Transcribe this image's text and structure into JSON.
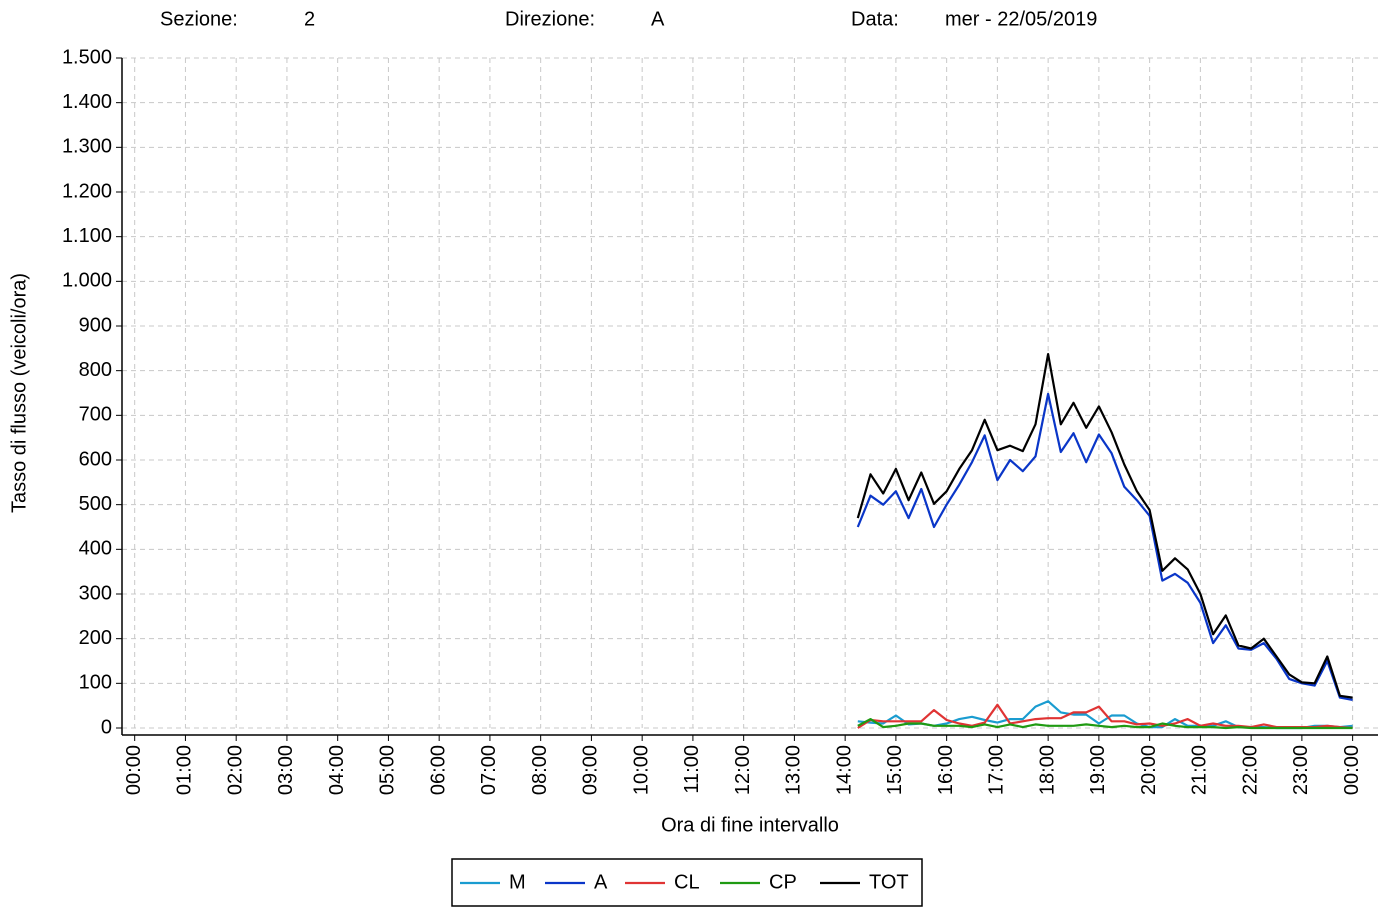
{
  "chart_data": {
    "type": "line",
    "header_fields": [
      {
        "label": "Sezione:",
        "value": "2"
      },
      {
        "label": "Direzione:",
        "value": "A"
      },
      {
        "label": "Data:",
        "value": "mer - 22/05/2019"
      }
    ],
    "xlabel": "Ora di fine intervallo",
    "ylabel": "Tasso di flusso (veicoli/ora)",
    "xlim": [
      -0.25,
      24.5
    ],
    "ylim": [
      0,
      1500
    ],
    "xticks": [
      {
        "value": 0,
        "label": "00:00"
      },
      {
        "value": 1,
        "label": "01:00"
      },
      {
        "value": 2,
        "label": "02:00"
      },
      {
        "value": 3,
        "label": "03:00"
      },
      {
        "value": 4,
        "label": "04:00"
      },
      {
        "value": 5,
        "label": "05:00"
      },
      {
        "value": 6,
        "label": "06:00"
      },
      {
        "value": 7,
        "label": "07:00"
      },
      {
        "value": 8,
        "label": "08:00"
      },
      {
        "value": 9,
        "label": "09:00"
      },
      {
        "value": 10,
        "label": "10:00"
      },
      {
        "value": 11,
        "label": "11:00"
      },
      {
        "value": 12,
        "label": "12:00"
      },
      {
        "value": 13,
        "label": "13:00"
      },
      {
        "value": 14,
        "label": "14:00"
      },
      {
        "value": 15,
        "label": "15:00"
      },
      {
        "value": 16,
        "label": "16:00"
      },
      {
        "value": 17,
        "label": "17:00"
      },
      {
        "value": 18,
        "label": "18:00"
      },
      {
        "value": 19,
        "label": "19:00"
      },
      {
        "value": 20,
        "label": "20:00"
      },
      {
        "value": 21,
        "label": "21:00"
      },
      {
        "value": 22,
        "label": "22:00"
      },
      {
        "value": 23,
        "label": "23:00"
      },
      {
        "value": 24,
        "label": "00:00"
      }
    ],
    "yticks": [
      0,
      100,
      200,
      300,
      400,
      500,
      600,
      700,
      800,
      900,
      {
        "value": 1000,
        "label": "1.000"
      },
      {
        "value": 1100,
        "label": "1.100"
      },
      {
        "value": 1200,
        "label": "1.200"
      },
      {
        "value": 1300,
        "label": "1.300"
      },
      {
        "value": 1400,
        "label": "1.400"
      },
      {
        "value": 1500,
        "label": "1.500"
      }
    ],
    "grid": true,
    "legend": "bottom",
    "x": [
      14.25,
      14.5,
      14.75,
      15,
      15.25,
      15.5,
      15.75,
      16,
      16.25,
      16.5,
      16.75,
      17,
      17.25,
      17.5,
      17.75,
      18,
      18.25,
      18.5,
      18.75,
      19,
      19.25,
      19.5,
      19.75,
      20,
      20.25,
      20.5,
      20.75,
      21,
      21.25,
      21.5,
      21.75,
      22,
      22.25,
      22.5,
      22.75,
      23,
      23.25,
      23.5,
      23.75,
      24
    ],
    "series": [
      {
        "name": "M",
        "color": "#1a9cd0",
        "values": [
          15,
          12,
          10,
          28,
          8,
          10,
          5,
          10,
          20,
          25,
          18,
          12,
          20,
          20,
          48,
          60,
          35,
          30,
          30,
          10,
          28,
          28,
          10,
          2,
          2,
          20,
          5,
          5,
          5,
          15,
          2,
          2,
          2,
          0,
          0,
          0,
          5,
          5,
          2,
          5
        ]
      },
      {
        "name": "A",
        "color": "#0a36c8",
        "values": [
          450,
          520,
          500,
          530,
          470,
          535,
          450,
          500,
          545,
          595,
          655,
          555,
          600,
          575,
          608,
          748,
          618,
          660,
          595,
          657,
          615,
          540,
          510,
          475,
          330,
          345,
          325,
          280,
          190,
          230,
          178,
          175,
          190,
          155,
          110,
          100,
          95,
          150,
          68,
          63
        ]
      },
      {
        "name": "CL",
        "color": "#e03434",
        "values": [
          0,
          18,
          15,
          15,
          15,
          15,
          40,
          18,
          10,
          5,
          12,
          52,
          10,
          15,
          20,
          22,
          22,
          35,
          35,
          48,
          15,
          15,
          8,
          10,
          5,
          10,
          20,
          5,
          10,
          5,
          5,
          2,
          8,
          2,
          2,
          2,
          2,
          5,
          2,
          0
        ]
      },
      {
        "name": "CP",
        "color": "#1f9a12",
        "values": [
          5,
          20,
          2,
          5,
          10,
          10,
          5,
          5,
          5,
          2,
          8,
          2,
          8,
          2,
          8,
          5,
          5,
          5,
          8,
          5,
          2,
          5,
          2,
          2,
          10,
          5,
          2,
          2,
          2,
          0,
          2,
          0,
          0,
          0,
          0,
          0,
          0,
          0,
          0,
          0
        ]
      },
      {
        "name": "TOT",
        "color": "#000000",
        "values": [
          470,
          568,
          525,
          580,
          510,
          572,
          502,
          530,
          580,
          622,
          690,
          622,
          632,
          620,
          680,
          837,
          680,
          728,
          672,
          720,
          662,
          590,
          530,
          488,
          352,
          380,
          355,
          300,
          210,
          252,
          185,
          178,
          200,
          160,
          120,
          102,
          100,
          160,
          72,
          68
        ]
      }
    ]
  }
}
